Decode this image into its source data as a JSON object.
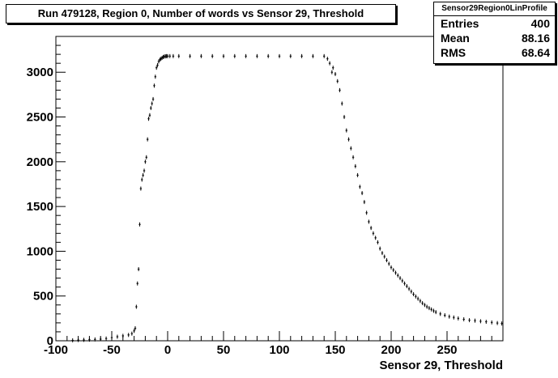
{
  "title": "Run 479128, Region 0, Number of words vs Sensor 29, Threshold",
  "stats": {
    "name": "Sensor29Region0LinProfile",
    "rows": [
      {
        "label": "Entries",
        "value": "400"
      },
      {
        "label": "Mean",
        "value": "88.16"
      },
      {
        "label": "RMS",
        "value": "68.64"
      }
    ]
  },
  "chart_data": {
    "type": "scatter",
    "title": "Run 479128, Region 0, Number of words vs Sensor 29, Threshold",
    "xlabel": "Sensor 29, Threshold",
    "ylabel": "",
    "xlim": [
      -100,
      300
    ],
    "ylim": [
      0,
      3400
    ],
    "xticks": [
      -100,
      -50,
      0,
      50,
      100,
      150,
      200,
      250
    ],
    "yticks": [
      0,
      500,
      1000,
      1500,
      2000,
      2500,
      3000
    ],
    "grid": false,
    "legend": "none",
    "series": [
      {
        "name": "",
        "points": [
          [
            -85,
            5
          ],
          [
            -80,
            8
          ],
          [
            -75,
            10
          ],
          [
            -70,
            12
          ],
          [
            -65,
            15
          ],
          [
            -60,
            18
          ],
          [
            -55,
            25
          ],
          [
            -50,
            35
          ],
          [
            -45,
            45
          ],
          [
            -40,
            55
          ],
          [
            -35,
            65
          ],
          [
            -32,
            80
          ],
          [
            -30,
            110
          ],
          [
            -29,
            140
          ],
          [
            -28,
            380
          ],
          [
            -27,
            640
          ],
          [
            -26,
            800
          ],
          [
            -25,
            1300
          ],
          [
            -24,
            1700
          ],
          [
            -23,
            1800
          ],
          [
            -22,
            1850
          ],
          [
            -21,
            1900
          ],
          [
            -20,
            2000
          ],
          [
            -19,
            2050
          ],
          [
            -18,
            2250
          ],
          [
            -17,
            2480
          ],
          [
            -16,
            2520
          ],
          [
            -15,
            2600
          ],
          [
            -14,
            2650
          ],
          [
            -13,
            2700
          ],
          [
            -12,
            2850
          ],
          [
            -11,
            2950
          ],
          [
            -10,
            3050
          ],
          [
            -9,
            3080
          ],
          [
            -8,
            3120
          ],
          [
            -7,
            3140
          ],
          [
            -6,
            3150
          ],
          [
            -5,
            3160
          ],
          [
            -4,
            3170
          ],
          [
            -3,
            3175
          ],
          [
            -2,
            3178
          ],
          [
            -1,
            3180
          ],
          [
            0,
            3180
          ],
          [
            2,
            3180
          ],
          [
            5,
            3180
          ],
          [
            10,
            3180
          ],
          [
            20,
            3180
          ],
          [
            30,
            3180
          ],
          [
            40,
            3180
          ],
          [
            50,
            3180
          ],
          [
            60,
            3180
          ],
          [
            70,
            3180
          ],
          [
            80,
            3180
          ],
          [
            90,
            3180
          ],
          [
            100,
            3180
          ],
          [
            110,
            3180
          ],
          [
            120,
            3180
          ],
          [
            130,
            3180
          ],
          [
            140,
            3180
          ],
          [
            143,
            3150
          ],
          [
            145,
            3100
          ],
          [
            147,
            3000
          ],
          [
            148,
            3050
          ],
          [
            150,
            2980
          ],
          [
            152,
            2900
          ],
          [
            154,
            2800
          ],
          [
            156,
            2650
          ],
          [
            158,
            2500
          ],
          [
            160,
            2350
          ],
          [
            162,
            2250
          ],
          [
            164,
            2150
          ],
          [
            166,
            2050
          ],
          [
            168,
            1950
          ],
          [
            170,
            1850
          ],
          [
            172,
            1720
          ],
          [
            174,
            1650
          ],
          [
            176,
            1550
          ],
          [
            178,
            1430
          ],
          [
            180,
            1330
          ],
          [
            182,
            1260
          ],
          [
            184,
            1200
          ],
          [
            186,
            1150
          ],
          [
            188,
            1100
          ],
          [
            190,
            1030
          ],
          [
            192,
            980
          ],
          [
            194,
            940
          ],
          [
            196,
            900
          ],
          [
            198,
            860
          ],
          [
            200,
            820
          ],
          [
            202,
            790
          ],
          [
            204,
            760
          ],
          [
            206,
            730
          ],
          [
            208,
            700
          ],
          [
            210,
            670
          ],
          [
            212,
            640
          ],
          [
            214,
            610
          ],
          [
            216,
            580
          ],
          [
            218,
            550
          ],
          [
            220,
            520
          ],
          [
            222,
            495
          ],
          [
            224,
            470
          ],
          [
            226,
            445
          ],
          [
            228,
            420
          ],
          [
            230,
            400
          ],
          [
            232,
            380
          ],
          [
            234,
            365
          ],
          [
            236,
            350
          ],
          [
            238,
            335
          ],
          [
            240,
            320
          ],
          [
            244,
            300
          ],
          [
            248,
            285
          ],
          [
            252,
            270
          ],
          [
            256,
            260
          ],
          [
            260,
            250
          ],
          [
            265,
            240
          ],
          [
            270,
            230
          ],
          [
            275,
            225
          ],
          [
            280,
            218
          ],
          [
            285,
            212
          ],
          [
            290,
            205
          ],
          [
            295,
            198
          ],
          [
            299,
            193
          ]
        ]
      }
    ]
  }
}
